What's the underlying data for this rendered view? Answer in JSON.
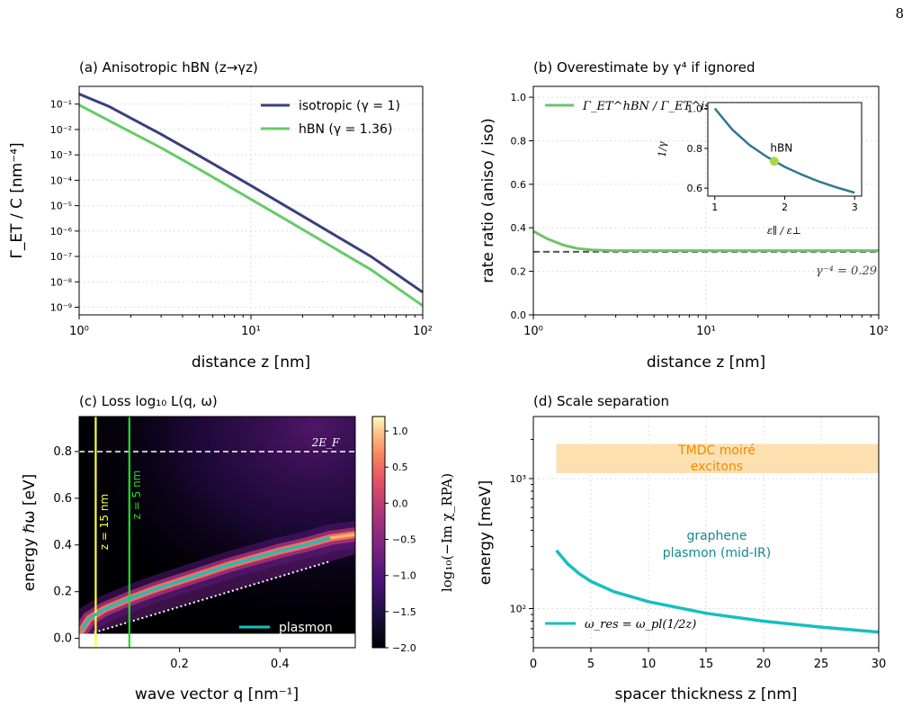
{
  "page_number": "8",
  "colors": {
    "isotropic": "#3b3f7d",
    "hbn": "#66cc66",
    "ratio": "#6cc36c",
    "inset": "#2f7790",
    "inset_dot": "#a8d846",
    "plasmon": "#17bfbf",
    "band": "#fde0b0",
    "tmdc_text": "#f08a00",
    "graphene_text": "#138a8a"
  },
  "chart_data": [
    {
      "id": "a",
      "type": "line",
      "scale": "log-log",
      "title": "(a) Anisotropic hBN (z→γz)",
      "xlabel": "distance z [nm]",
      "ylabel": "Γ_ET / C [nm⁻⁴]",
      "xlim": [
        1,
        100
      ],
      "ylim": [
        5e-10,
        0.5
      ],
      "xticks": [
        "10⁰",
        "10¹",
        "10²"
      ],
      "yticks": [
        "10⁻⁹",
        "10⁻⁸",
        "10⁻⁷",
        "10⁻⁶",
        "10⁻⁵",
        "10⁻⁴",
        "10⁻³",
        "10⁻²",
        "10⁻¹"
      ],
      "grid": true,
      "legend": "top-right",
      "series": [
        {
          "name": "isotropic (γ = 1)",
          "x": [
            1,
            1.5,
            2,
            3,
            5,
            10,
            20,
            50,
            100
          ],
          "y": [
            0.25,
            0.08,
            0.028,
            0.0065,
            0.00092,
            6.2e-05,
            3.9e-06,
            1e-07,
            3.9e-09
          ]
        },
        {
          "name": "hBN (γ = 1.36)",
          "x": [
            1,
            1.5,
            2,
            3,
            5,
            10,
            20,
            50,
            100
          ],
          "y": [
            0.092,
            0.022,
            0.0079,
            0.0019,
            0.00027,
            1.8e-05,
            1.15e-06,
            3e-08,
            1.15e-09
          ]
        }
      ]
    },
    {
      "id": "b",
      "type": "line",
      "scale": "log-x",
      "title": "(b) Overestimate by γ⁴ if ignored",
      "xlabel": "distance z [nm]",
      "ylabel": "rate ratio (aniso / iso)",
      "xlim": [
        1,
        100
      ],
      "ylim": [
        0,
        1.05
      ],
      "xticks": [
        "10⁰",
        "10¹",
        "10²"
      ],
      "yticks": [
        "0.0",
        "0.2",
        "0.4",
        "0.6",
        "0.8",
        "1.0"
      ],
      "grid": true,
      "legend": "top-left",
      "series": [
        {
          "name": "Γ_ET^hBN / Γ_ET^iso",
          "x": [
            1,
            1.2,
            1.5,
            1.8,
            2.2,
            3,
            5,
            10,
            100
          ],
          "y": [
            0.385,
            0.35,
            0.32,
            0.305,
            0.298,
            0.295,
            0.295,
            0.295,
            0.295
          ]
        }
      ],
      "asymptote": {
        "value": 0.29,
        "label": "γ⁻⁴ = 0.29"
      },
      "inset": {
        "xlabel": "ε∥ / ε⊥",
        "ylabel": "1/γ",
        "xlim": [
          0.9,
          3.1
        ],
        "ylim": [
          0.56,
          1.03
        ],
        "xticks": [
          "1",
          "2",
          "3"
        ],
        "yticks": [
          "0.6",
          "0.8",
          "1.0"
        ],
        "x": [
          1,
          1.25,
          1.5,
          1.75,
          2,
          2.25,
          2.5,
          2.75,
          3
        ],
        "y": [
          1.0,
          0.894,
          0.816,
          0.756,
          0.707,
          0.667,
          0.632,
          0.603,
          0.577
        ],
        "point": {
          "x": 1.85,
          "y": 0.735,
          "label": "hBN"
        }
      }
    },
    {
      "id": "c",
      "type": "heatmap",
      "title": "(c) Loss log₁₀ L(q, ω)",
      "xlabel": "wave vector q [nm⁻¹]",
      "ylabel": "energy ℏω [eV]",
      "xlim": [
        0,
        0.55
      ],
      "ylim": [
        -0.04,
        0.95
      ],
      "xticks": [
        "0.2",
        "0.4"
      ],
      "yticks": [
        "0.0",
        "0.2",
        "0.4",
        "0.6",
        "0.8"
      ],
      "colorbar": {
        "label": "log₁₀(−Im χ_RPA)",
        "range": [
          -2.0,
          1.2
        ],
        "ticks": [
          "−2.0",
          "−1.5",
          "−1.0",
          "−0.5",
          "0.0",
          "0.5",
          "1.0"
        ]
      },
      "plasmon": {
        "name": "plasmon",
        "q": [
          0.005,
          0.02,
          0.05,
          0.1,
          0.15,
          0.2,
          0.25,
          0.3,
          0.35,
          0.4,
          0.45,
          0.5
        ],
        "E": [
          0.035,
          0.085,
          0.125,
          0.17,
          0.21,
          0.245,
          0.28,
          0.315,
          0.345,
          0.375,
          0.4,
          0.43
        ]
      },
      "fermi_line": {
        "E": 0.8,
        "label": "2E_F"
      },
      "vlines": [
        {
          "q": 0.033,
          "label": "z = 15 nm",
          "color": "#ffff33"
        },
        {
          "q": 0.1,
          "label": "z = 5 nm",
          "color": "#22dd22"
        }
      ],
      "pair_edge": {
        "q": [
          0.03,
          0.5
        ],
        "E": [
          0.025,
          0.33
        ]
      }
    },
    {
      "id": "d",
      "type": "line",
      "scale": "log-y",
      "title": "(d) Scale separation",
      "xlabel": "spacer thickness z [nm]",
      "ylabel": "energy [meV]",
      "xlim": [
        0,
        30
      ],
      "ylim": [
        50,
        3000
      ],
      "xticks": [
        "0",
        "5",
        "10",
        "15",
        "20",
        "25",
        "30"
      ],
      "yticks": [
        "10²",
        "10³"
      ],
      "grid": true,
      "legend": "bottom-left",
      "series": [
        {
          "name": "ω_res = ω_pl(1/2z)",
          "x": [
            2,
            3,
            4,
            5,
            7,
            10,
            15,
            20,
            25,
            30
          ],
          "y": [
            280,
            220,
            185,
            162,
            135,
            113,
            92,
            80,
            72,
            66
          ]
        }
      ],
      "band": {
        "range": [
          1100,
          1850
        ],
        "x": [
          2,
          30
        ],
        "label_line1": "TMDC moiré",
        "label_line2": "excitons"
      },
      "annotation": {
        "line1": "graphene",
        "line2": "plasmon (mid-IR)"
      }
    }
  ]
}
